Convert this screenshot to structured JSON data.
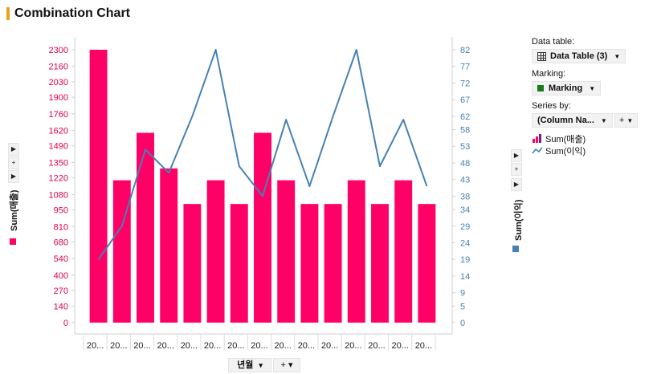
{
  "title": "Combination Chart",
  "left_axis_controls": [
    "▶",
    "+",
    "▶"
  ],
  "right_axis_controls": [
    "▶",
    "+",
    "▶"
  ],
  "left_axis_title": "Sum(매출)",
  "right_axis_title": "Sum(이익)",
  "x_axis": {
    "title": "년월",
    "dropdown": "▾",
    "plus": "+ ▾"
  },
  "panel": {
    "data_table_label": "Data table:",
    "data_table_value": "Data Table (3)",
    "marking_label": "Marking:",
    "marking_value": "Marking",
    "series_by_label": "Series by:",
    "series_by_value": "(Column Na...",
    "series_by_plus": "+",
    "legend": [
      {
        "label": "Sum(매출)",
        "icon": "bar-chart-icon"
      },
      {
        "label": "Sum(이익)",
        "icon": "line-chart-icon"
      }
    ]
  },
  "colors": {
    "bar": "#FF0066",
    "line": "#4682B4",
    "left_ticks": "#E0004C",
    "right_ticks": "#4682B4",
    "marking": "#1a7a1a"
  },
  "chart_data": {
    "type": "bar",
    "combo": "bar+line",
    "categories": [
      "20...",
      "20...",
      "20...",
      "20...",
      "20...",
      "20...",
      "20...",
      "20...",
      "20...",
      "20...",
      "20...",
      "20...",
      "20...",
      "20...",
      "20..."
    ],
    "series": [
      {
        "name": "Sum(매출)",
        "type": "bar",
        "axis": "left",
        "values": [
          2300,
          1200,
          1600,
          1300,
          1000,
          1200,
          1000,
          1600,
          1200,
          1000,
          1000,
          1200,
          1000,
          1200,
          1000
        ]
      },
      {
        "name": "Sum(이익)",
        "type": "line",
        "axis": "right",
        "values": [
          19,
          29,
          52,
          45,
          62,
          82,
          47,
          38,
          61,
          41,
          62,
          82,
          47,
          61,
          41
        ]
      }
    ],
    "left_axis": {
      "title": "Sum(매출)",
      "ylim": [
        0,
        2300
      ],
      "ticks": [
        0,
        140,
        270,
        400,
        540,
        680,
        810,
        950,
        1080,
        1220,
        1350,
        1490,
        1620,
        1760,
        1900,
        2030,
        2160,
        2300
      ]
    },
    "right_axis": {
      "title": "Sum(이익)",
      "ylim": [
        0,
        82
      ],
      "ticks": [
        0,
        5,
        9,
        14,
        19,
        24,
        29,
        34,
        38,
        43,
        48,
        53,
        58,
        62,
        67,
        72,
        77,
        82
      ]
    },
    "xlabel": "년월",
    "grid": false
  }
}
